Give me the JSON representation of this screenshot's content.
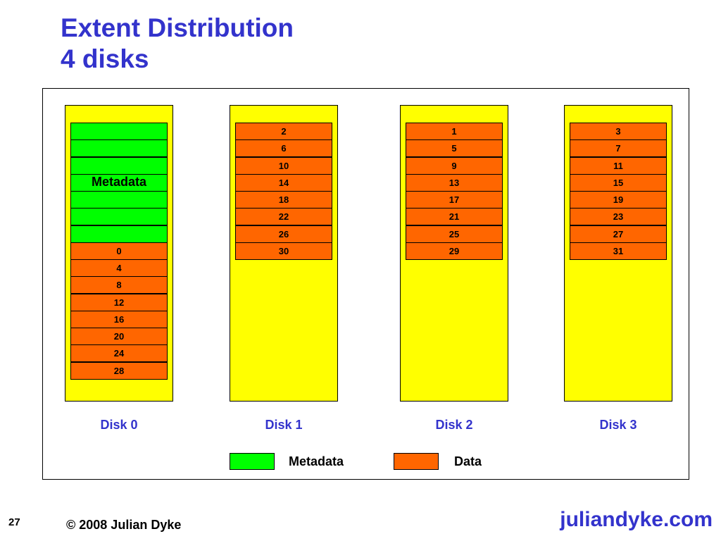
{
  "title": {
    "line1": "Extent Distribution",
    "line2": "4 disks"
  },
  "disks": [
    {
      "label": "Disk 0",
      "meta_label": "Metadata",
      "meta_count": 7,
      "extents": [
        "0",
        "4",
        "8",
        "12",
        "16",
        "20",
        "24",
        "28"
      ]
    },
    {
      "label": "Disk 1",
      "meta_label": "",
      "meta_count": 0,
      "extents": [
        "2",
        "6",
        "10",
        "14",
        "18",
        "22",
        "26",
        "30"
      ]
    },
    {
      "label": "Disk 2",
      "meta_label": "",
      "meta_count": 0,
      "extents": [
        "1",
        "5",
        "9",
        "13",
        "17",
        "21",
        "25",
        "29"
      ]
    },
    {
      "label": "Disk 3",
      "meta_label": "",
      "meta_count": 0,
      "extents": [
        "3",
        "7",
        "11",
        "15",
        "19",
        "23",
        "27",
        "31"
      ]
    }
  ],
  "legend": {
    "metadata": "Metadata",
    "data": "Data"
  },
  "colors": {
    "metadata": "#00ff00",
    "data": "#ff6600",
    "disk": "#ffff00",
    "accent": "#3333cc"
  },
  "footer": {
    "page": "27",
    "copyright": "© 2008 Julian Dyke",
    "site": "juliandyke.com"
  }
}
